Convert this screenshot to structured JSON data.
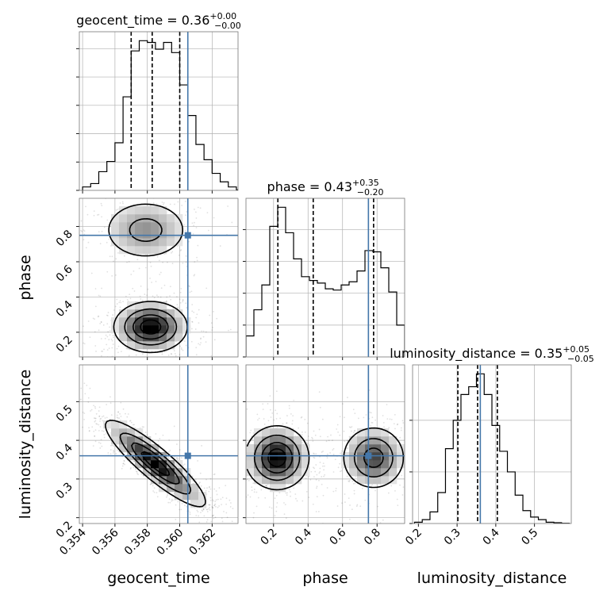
{
  "chart_data": {
    "type": "corner",
    "parameters": [
      "geocent_time",
      "phase",
      "luminosity_distance"
    ],
    "truth": {
      "geocent_time": 0.3605,
      "phase": 0.75,
      "luminosity_distance": 0.36
    },
    "truth_color": "#4477aa",
    "grid": true,
    "panels": {
      "geocent_time_hist": {
        "title_prefix": "geocent_time = 0.36",
        "title_sup": "+0.00",
        "title_sub": "−0.00",
        "quantiles": [
          0.357,
          0.3583,
          0.36
        ],
        "xlim": [
          0.3538,
          0.3636
        ],
        "bins_x": [
          0.354,
          0.3545,
          0.355,
          0.3555,
          0.356,
          0.3565,
          0.357,
          0.3575,
          0.358,
          0.3585,
          0.359,
          0.3595,
          0.36,
          0.3605,
          0.361,
          0.3615,
          0.362,
          0.3625,
          0.363,
          0.3635
        ],
        "counts": [
          0.6,
          1.2,
          3.3,
          5.1,
          8.4,
          16.5,
          24.6,
          26.4,
          26.1,
          24.9,
          26.1,
          24.3,
          18.6,
          13.2,
          8.1,
          5.4,
          3.0,
          1.5,
          0.6,
          0.1
        ],
        "yticks": [
          0,
          5,
          10,
          15,
          20,
          25
        ]
      },
      "phase_hist": {
        "title_prefix": "phase = 0.43",
        "title_sup": "+0.35",
        "title_sub": "−0.20",
        "quantiles": [
          0.225,
          0.43,
          0.78
        ],
        "xlim": [
          0.04,
          0.96
        ],
        "bins_x": [
          0.04,
          0.086,
          0.132,
          0.178,
          0.224,
          0.27,
          0.316,
          0.362,
          0.408,
          0.454,
          0.5,
          0.546,
          0.592,
          0.638,
          0.684,
          0.73,
          0.776,
          0.822,
          0.868,
          0.914
        ],
        "counts": [
          3.3,
          7.4,
          11.3,
          20.5,
          23.5,
          19.5,
          15.4,
          12.6,
          12.0,
          11.6,
          10.7,
          10.5,
          11.3,
          11.8,
          13.5,
          16.7,
          16.5,
          14.0,
          10.2,
          5.0
        ],
        "yticks": [
          0,
          5,
          10,
          15,
          20
        ]
      },
      "luminosity_distance_hist": {
        "title_prefix": "luminosity_distance = 0.35",
        "title_sup": "+0.05",
        "title_sub": "−0.05",
        "quantiles": [
          0.302,
          0.353,
          0.404
        ],
        "xlim": [
          0.185,
          0.595
        ],
        "bins_x": [
          0.19,
          0.21,
          0.23,
          0.25,
          0.27,
          0.29,
          0.31,
          0.33,
          0.35,
          0.37,
          0.39,
          0.41,
          0.43,
          0.45,
          0.47,
          0.49,
          0.51,
          0.53,
          0.55,
          0.57
        ],
        "counts": [
          0.5,
          1.5,
          4.5,
          12.0,
          29.0,
          40.0,
          50.0,
          53.0,
          58.0,
          50.0,
          38.0,
          28.0,
          20.0,
          11.0,
          5.0,
          2.5,
          1.5,
          0.5,
          0.3,
          0.1
        ],
        "yticks": [
          0,
          20,
          40
        ]
      },
      "phase_vs_geocent_time": {
        "xlim": [
          0.3538,
          0.3636
        ],
        "ylim": [
          0.06,
          0.96
        ],
        "yticks": [
          0.2,
          0.4,
          0.6,
          0.8
        ],
        "density_modes": [
          {
            "x": 0.3582,
            "y": 0.23,
            "sx": 0.0011,
            "sy": 0.07,
            "w": 1.0
          },
          {
            "x": 0.3579,
            "y": 0.78,
            "sx": 0.0014,
            "sy": 0.09,
            "w": 0.45
          }
        ]
      },
      "luminosity_distance_vs_geocent_time": {
        "xlim": [
          0.3538,
          0.3636
        ],
        "ylim": [
          0.185,
          0.595
        ],
        "yticks": [
          0.2,
          0.3,
          0.4,
          0.5
        ],
        "xticks": [
          0.354,
          0.356,
          0.358,
          0.36,
          0.362
        ],
        "density_modes": [
          {
            "x": 0.3585,
            "y": 0.34,
            "slope": -32.0,
            "spread": 0.025,
            "len": 0.0015,
            "w": 1.0
          }
        ]
      },
      "luminosity_distance_vs_phase": {
        "xlim": [
          0.04,
          0.96
        ],
        "ylim": [
          0.185,
          0.595
        ],
        "xticks": [
          0.2,
          0.4,
          0.6,
          0.8
        ],
        "density_modes": [
          {
            "x": 0.22,
            "y": 0.355,
            "sx": 0.09,
            "sy": 0.04,
            "w": 1.0
          },
          {
            "x": 0.78,
            "y": 0.355,
            "sx": 0.09,
            "sy": 0.04,
            "w": 0.75
          }
        ]
      }
    },
    "xlabels": [
      "geocent_time",
      "phase",
      "luminosity_distance"
    ],
    "ylabels": [
      "phase",
      "luminosity_distance"
    ],
    "xtick_labels": {
      "geocent_time": [
        "0.354",
        "0.356",
        "0.358",
        "0.360",
        "0.362"
      ],
      "phase": [
        "0.2",
        "0.4",
        "0.6",
        "0.8"
      ],
      "luminosity_distance": [
        "0.2",
        "0.3",
        "0.4",
        "0.5"
      ]
    },
    "ytick_labels": {
      "phase": [
        "0.2",
        "0.4",
        "0.6",
        "0.8"
      ],
      "luminosity_distance": [
        "0.2",
        "0.3",
        "0.4",
        "0.5"
      ]
    }
  }
}
